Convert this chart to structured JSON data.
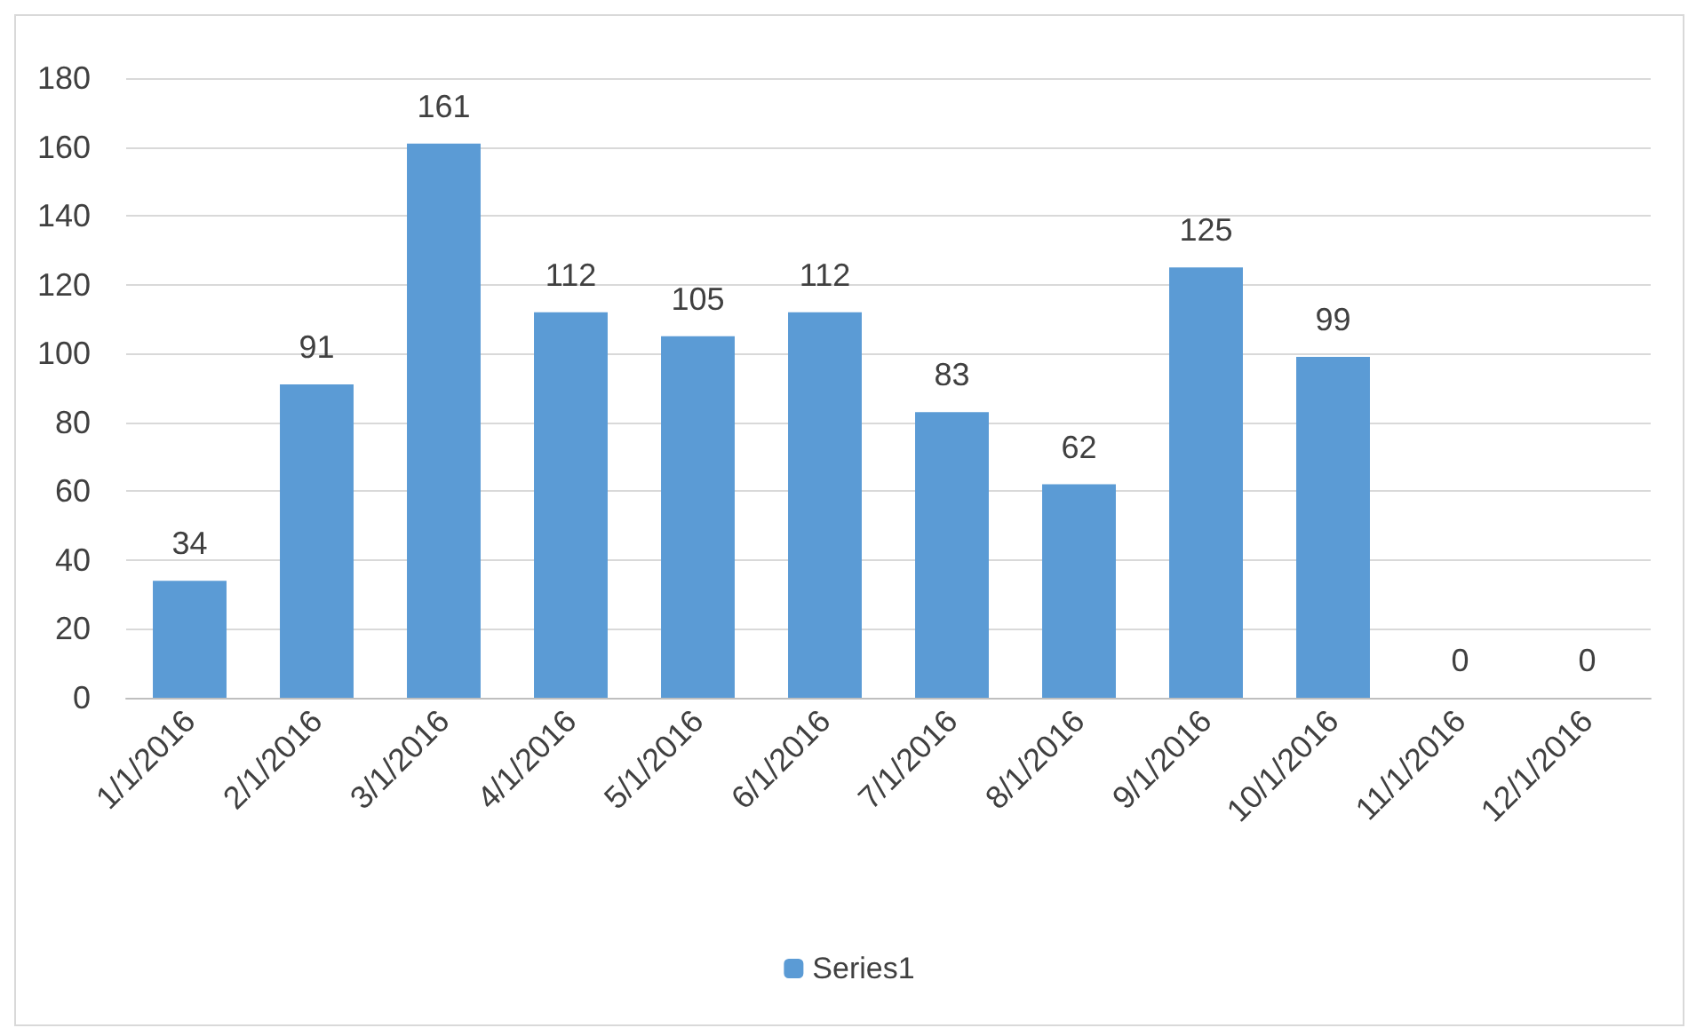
{
  "chart_data": {
    "type": "bar",
    "categories": [
      "1/1/2016",
      "2/1/2016",
      "3/1/2016",
      "4/1/2016",
      "5/1/2016",
      "6/1/2016",
      "7/1/2016",
      "8/1/2016",
      "9/1/2016",
      "10/1/2016",
      "11/1/2016",
      "12/1/2016"
    ],
    "series": [
      {
        "name": "Series1",
        "color": "#5b9bd5",
        "values": [
          34,
          91,
          161,
          112,
          105,
          112,
          83,
          62,
          125,
          99,
          0,
          0
        ]
      }
    ],
    "ylim": [
      0,
      180
    ],
    "yticks": [
      0,
      20,
      40,
      60,
      80,
      100,
      120,
      140,
      160,
      180
    ],
    "grid": "y",
    "legend": "bottom",
    "data_labels": true
  }
}
